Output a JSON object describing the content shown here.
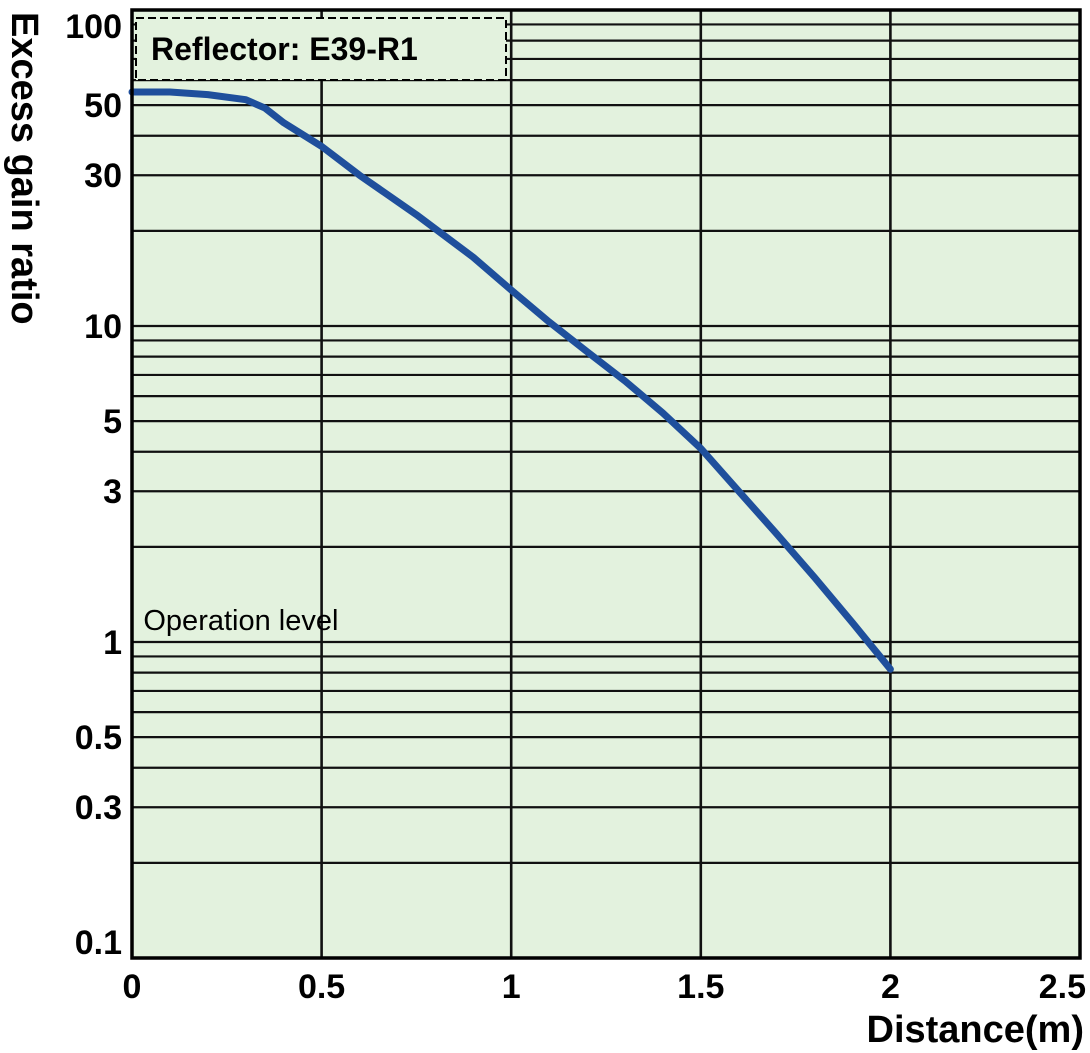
{
  "chart_data": {
    "type": "line",
    "title": "",
    "xlabel": "Distance(m)",
    "ylabel": "Excess gain ratio",
    "xscale": "linear",
    "yscale": "log",
    "xlim": [
      0,
      2.5
    ],
    "ylim": [
      0.1,
      100
    ],
    "grid": true,
    "x_ticks": [
      0,
      0.5,
      1,
      1.5,
      2,
      2.5
    ],
    "x_tick_labels": [
      "0",
      "0.5",
      "1",
      "1.5",
      "2",
      "2.5"
    ],
    "y_ticks": [
      0.1,
      0.3,
      0.5,
      1,
      3,
      5,
      10,
      30,
      50,
      100
    ],
    "y_tick_labels": [
      "0.1",
      "0.3",
      "0.5",
      "1",
      "3",
      "5",
      "10",
      "30",
      "50",
      "100"
    ],
    "legend": {
      "text": "Reflector: E39-R1",
      "placement": "top-left"
    },
    "annotations": [
      {
        "text": "Operation level",
        "x": 0.03,
        "y": 1
      }
    ],
    "series": [
      {
        "color": "#1f4f9c",
        "x": [
          0,
          0.1,
          0.2,
          0.3,
          0.35,
          0.4,
          0.5,
          0.6,
          0.75,
          0.9,
          1.0,
          1.1,
          1.2,
          1.3,
          1.4,
          1.5,
          1.6,
          1.7,
          1.8,
          1.9,
          2.0
        ],
        "y": [
          55,
          55,
          54,
          52,
          49,
          44,
          37,
          30,
          22.5,
          16.5,
          13,
          10.3,
          8.3,
          6.7,
          5.3,
          4.1,
          3.0,
          2.2,
          1.6,
          1.15,
          0.82
        ]
      }
    ]
  },
  "colors": {
    "plot_background": "#e3f2de",
    "grid": "#111111",
    "series_line": "#1f4f9c"
  }
}
